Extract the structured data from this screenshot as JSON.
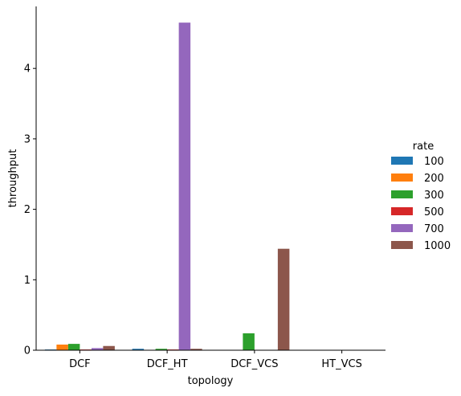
{
  "chart_data": {
    "type": "bar",
    "title": "",
    "xlabel": "topology",
    "ylabel": "throughput",
    "categories": [
      "DCF",
      "DCF_HT",
      "DCF_VCS",
      "HT_VCS"
    ],
    "ylim": [
      0,
      4.88
    ],
    "yticks": [
      0,
      1,
      2,
      3,
      4
    ],
    "grid": false,
    "legend": {
      "title": "rate",
      "placement": "right"
    },
    "series": [
      {
        "name": "100",
        "color": "#1f77b4",
        "values": [
          0.01,
          0.02,
          0.0,
          0.0
        ]
      },
      {
        "name": "200",
        "color": "#ff7f0e",
        "values": [
          0.08,
          0.0,
          0.0,
          0.0
        ]
      },
      {
        "name": "300",
        "color": "#2ca02c",
        "values": [
          0.09,
          0.02,
          0.24,
          0.0
        ]
      },
      {
        "name": "500",
        "color": "#d62728",
        "values": [
          0.01,
          0.01,
          0.0,
          0.0
        ]
      },
      {
        "name": "700",
        "color": "#9467bd",
        "values": [
          0.03,
          4.65,
          0.0,
          0.0
        ]
      },
      {
        "name": "1000",
        "color": "#8c564b",
        "values": [
          0.06,
          0.02,
          1.44,
          0.0
        ]
      }
    ]
  }
}
